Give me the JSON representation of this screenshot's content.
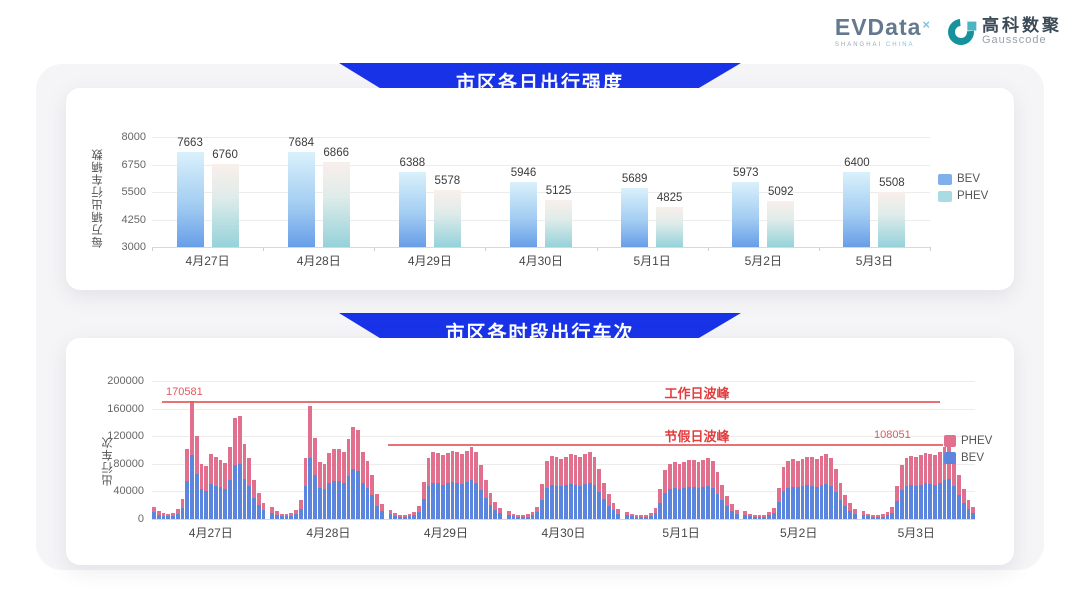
{
  "brand": {
    "evdata_word": "EVData",
    "evdata_sup": "×",
    "evdata_tag_left": "SHANGHAI ",
    "evdata_tag_right": "CHINA",
    "gausscode_cn": "高科数聚",
    "gausscode_en": "Gausscode"
  },
  "chart_data": [
    {
      "type": "bar",
      "title": "市区各日出行强度",
      "ylabel": "每万辆出行车辆数",
      "ylim": [
        3000,
        8000
      ],
      "yticks": [
        3000,
        4250,
        5500,
        6750,
        8000
      ],
      "grid": true,
      "legend_position": "right",
      "categories": [
        "4月27日",
        "4月28日",
        "4月29日",
        "4月30日",
        "5月1日",
        "5月2日",
        "5月3日"
      ],
      "series": [
        {
          "name": "BEV",
          "values": [
            7663,
            7684,
            6388,
            5946,
            5689,
            5973,
            6400
          ]
        },
        {
          "name": "PHEV",
          "values": [
            6760,
            6866,
            5578,
            5125,
            4825,
            5092,
            5508
          ]
        }
      ]
    },
    {
      "type": "bar",
      "stacked": true,
      "title": "市区各时段出行车次",
      "ylabel": "出行车次",
      "ylim": [
        0,
        200000
      ],
      "yticks": [
        0,
        40000,
        80000,
        120000,
        160000,
        200000
      ],
      "grid": true,
      "legend_position": "right",
      "legend": [
        "PHEV",
        "BEV"
      ],
      "bev_share": 0.54,
      "annotations": [
        {
          "label": "工作日波峰",
          "value": 170581
        },
        {
          "label": "节假日波峰",
          "value": 108051
        }
      ],
      "days": [
        {
          "label": "4月27日",
          "totals": [
            17800,
            11600,
            8200,
            7400,
            9100,
            14200,
            28400,
            100800,
            170581,
            119800,
            80400,
            76200,
            94600,
            89800,
            86200,
            81600,
            104200,
            145800,
            148900,
            108400,
            88600,
            56200,
            37800,
            23600
          ]
        },
        {
          "label": "4月28日",
          "totals": [
            16900,
            11200,
            7900,
            7100,
            8800,
            13700,
            27500,
            88000,
            163900,
            117000,
            82300,
            80100,
            95400,
            100800,
            101300,
            96800,
            115600,
            133500,
            128700,
            97400,
            84100,
            63400,
            35700,
            22100
          ]
        },
        {
          "label": "4月29日",
          "totals": [
            12400,
            8100,
            6200,
            5800,
            6900,
            10300,
            18600,
            54200,
            88700,
            97400,
            95800,
            92300,
            96100,
            98200,
            97600,
            94800,
            99300,
            104100,
            96700,
            78400,
            56200,
            38100,
            24600,
            15800
          ]
        },
        {
          "label": "4月30日",
          "totals": [
            11800,
            7900,
            6000,
            5600,
            6700,
            9900,
            17800,
            50400,
            83600,
            91200,
            89800,
            87400,
            90600,
            93800,
            92400,
            89600,
            94100,
            96800,
            90300,
            72600,
            52400,
            35800,
            22900,
            14700
          ]
        },
        {
          "label": "5月1日",
          "totals": [
            10900,
            7400,
            5700,
            5300,
            6300,
            9200,
            15600,
            42800,
            70400,
            79800,
            82600,
            80400,
            83100,
            85700,
            84900,
            82300,
            86200,
            88400,
            83700,
            68400,
            49800,
            33600,
            21400,
            13600
          ]
        },
        {
          "label": "5月2日",
          "totals": [
            11200,
            7600,
            5800,
            5400,
            6500,
            9500,
            16400,
            45600,
            74800,
            84300,
            86900,
            84700,
            87400,
            90200,
            89400,
            86800,
            90700,
            93600,
            88100,
            71800,
            52100,
            35200,
            22600,
            14300
          ]
        },
        {
          "label": "5月3日",
          "totals": [
            11600,
            7800,
            6000,
            5600,
            6700,
            9800,
            17200,
            48400,
            78600,
            88400,
            91200,
            89300,
            92600,
            95800,
            94700,
            92100,
            97400,
            104800,
            108051,
            89600,
            64200,
            42800,
            27400,
            16800
          ]
        }
      ]
    }
  ],
  "colors": {
    "banner_blue": "#1832e8",
    "bev_blue": "#5c86dd",
    "phev_pink": "#e0708d",
    "bev_gradient_top": "#daf1fb",
    "bev_gradient_bottom": "#689ee8",
    "phev_gradient_top": "#f9efeb",
    "phev_gradient_bottom": "#95d2da",
    "annotation_red": "#e2595b",
    "legend_bev_light": "#7fb0ec",
    "legend_phev_light": "#a9dbe4"
  }
}
